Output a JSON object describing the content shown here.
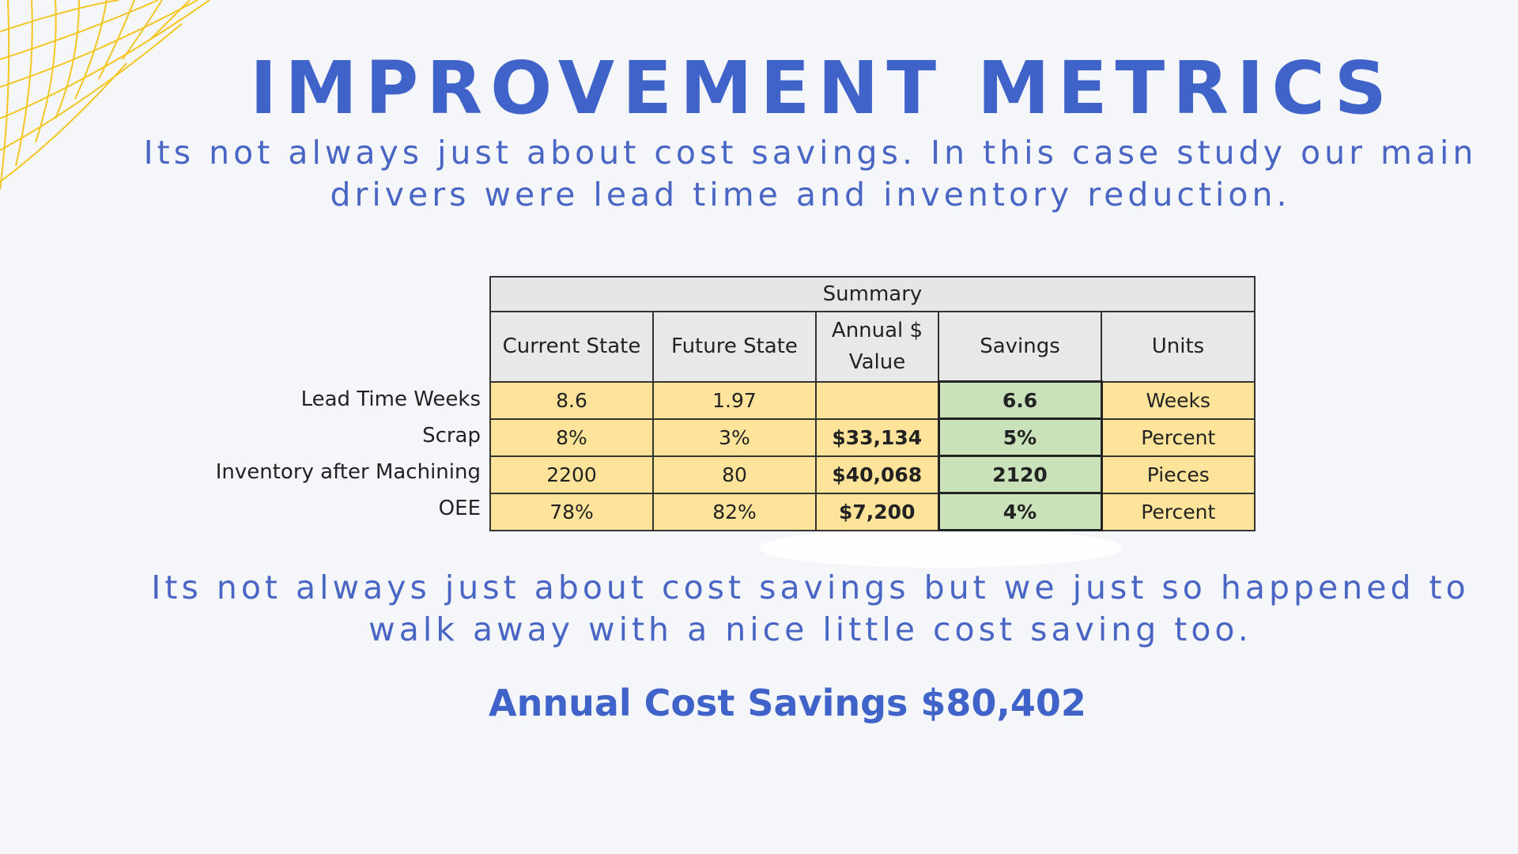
{
  "title": "IMPROVEMENT METRICS",
  "intro": "Its not always just about cost savings. In this case study our main drivers were lead time and inventory reduction.",
  "outro": "Its not always just about cost savings but we just so happened to walk away with a nice little cost saving too.",
  "total": "Annual Cost Savings $80,402",
  "colors": {
    "accent": "#3f63c9",
    "yellow_cell": "#fde49a",
    "green_cell": "#c9e2b9",
    "header_grey": "#e6e6e6",
    "deco_lines": "#f3c623"
  },
  "table": {
    "caption": "Summary",
    "headers": [
      "Current State",
      "Future State",
      "Annual $ Value",
      "Savings",
      "Units"
    ],
    "rows": [
      {
        "label": "Lead Time Weeks",
        "current": "8.6",
        "future": "1.97",
        "annual": "",
        "savings": "6.6",
        "units": "Weeks"
      },
      {
        "label": "Scrap",
        "current": "8%",
        "future": "3%",
        "annual": "$33,134",
        "savings": "5%",
        "units": "Percent"
      },
      {
        "label": "Inventory after Machining",
        "current": "2200",
        "future": "80",
        "annual": "$40,068",
        "savings": "2120",
        "units": "Pieces"
      },
      {
        "label": "OEE",
        "current": "78%",
        "future": "82%",
        "annual": "$7,200",
        "savings": "4%",
        "units": "Percent"
      }
    ]
  }
}
